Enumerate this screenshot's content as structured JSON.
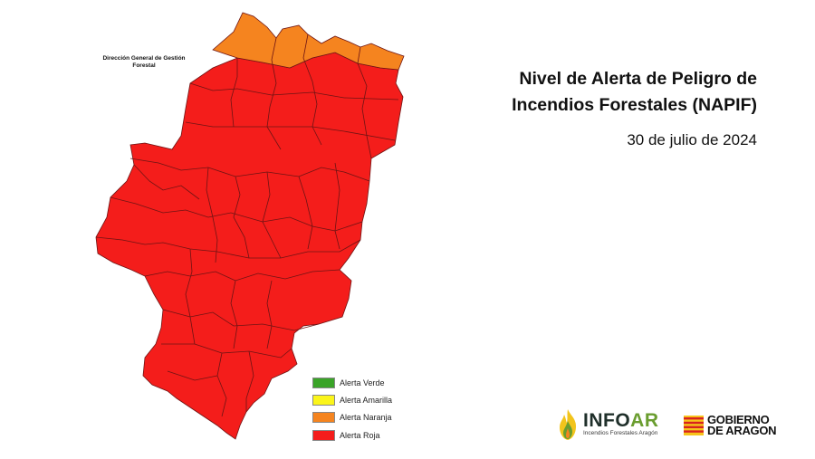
{
  "organization": "Dirección General de Gestión Forestal",
  "title_line1": "Nivel de Alerta de Peligro de",
  "title_line2": "Incendios Forestales (NAPIF)",
  "date": "30 de julio de 2024",
  "legend": [
    {
      "label": "Alerta Verde",
      "color": "#3aa428"
    },
    {
      "label": "Alerta Amarilla",
      "color": "#fbf51a"
    },
    {
      "label": "Alerta Naranja",
      "color": "#f5841f"
    },
    {
      "label": "Alerta Roja",
      "color": "#f41d1b"
    }
  ],
  "map_levels": {
    "pyrenees_north_strip": "Alerta Naranja",
    "rest_of_aragon": "Alerta Roja"
  },
  "logo_infoar": {
    "name_part1": "INFO",
    "name_part2": "AR",
    "subtitle": "Incendios Forestales Aragón",
    "icon": "flame-icon"
  },
  "logo_gobierno": {
    "line1": "GOBIERNO",
    "line2": "DE ARAGON",
    "icon": "aragon-flag-icon"
  }
}
